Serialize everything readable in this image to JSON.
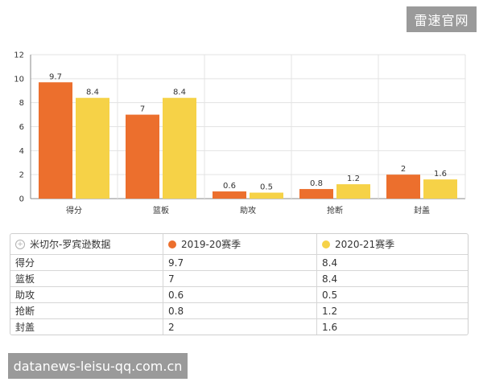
{
  "watermarks": {
    "top": "雷速官网",
    "bottom": "datanews-leisu-qq.com.cn"
  },
  "colors": {
    "series_2019": "#ec6f2d",
    "series_2020": "#f6d247"
  },
  "chart_data": {
    "type": "bar",
    "categories": [
      "得分",
      "篮板",
      "助攻",
      "抢断",
      "封盖"
    ],
    "series": [
      {
        "name": "2019-20赛季",
        "values": [
          9.7,
          7,
          0.6,
          0.8,
          2
        ]
      },
      {
        "name": "2020-21赛季",
        "values": [
          8.4,
          8.4,
          0.5,
          1.2,
          1.6
        ]
      }
    ],
    "ylim": [
      0,
      12
    ],
    "yticks": [
      "0",
      "2",
      "4",
      "6",
      "8",
      "10",
      "12"
    ],
    "grid": true,
    "legend": "table-header"
  },
  "table": {
    "corner_label": "米切尔-罗宾逊数据",
    "headers": [
      "2019-20赛季",
      "2020-21赛季"
    ],
    "rows": [
      {
        "label": "得分",
        "v1": "9.7",
        "v2": "8.4"
      },
      {
        "label": "篮板",
        "v1": "7",
        "v2": "8.4"
      },
      {
        "label": "助攻",
        "v1": "0.6",
        "v2": "0.5"
      },
      {
        "label": "抢断",
        "v1": "0.8",
        "v2": "1.2"
      },
      {
        "label": "封盖",
        "v1": "2",
        "v2": "1.6"
      }
    ]
  }
}
